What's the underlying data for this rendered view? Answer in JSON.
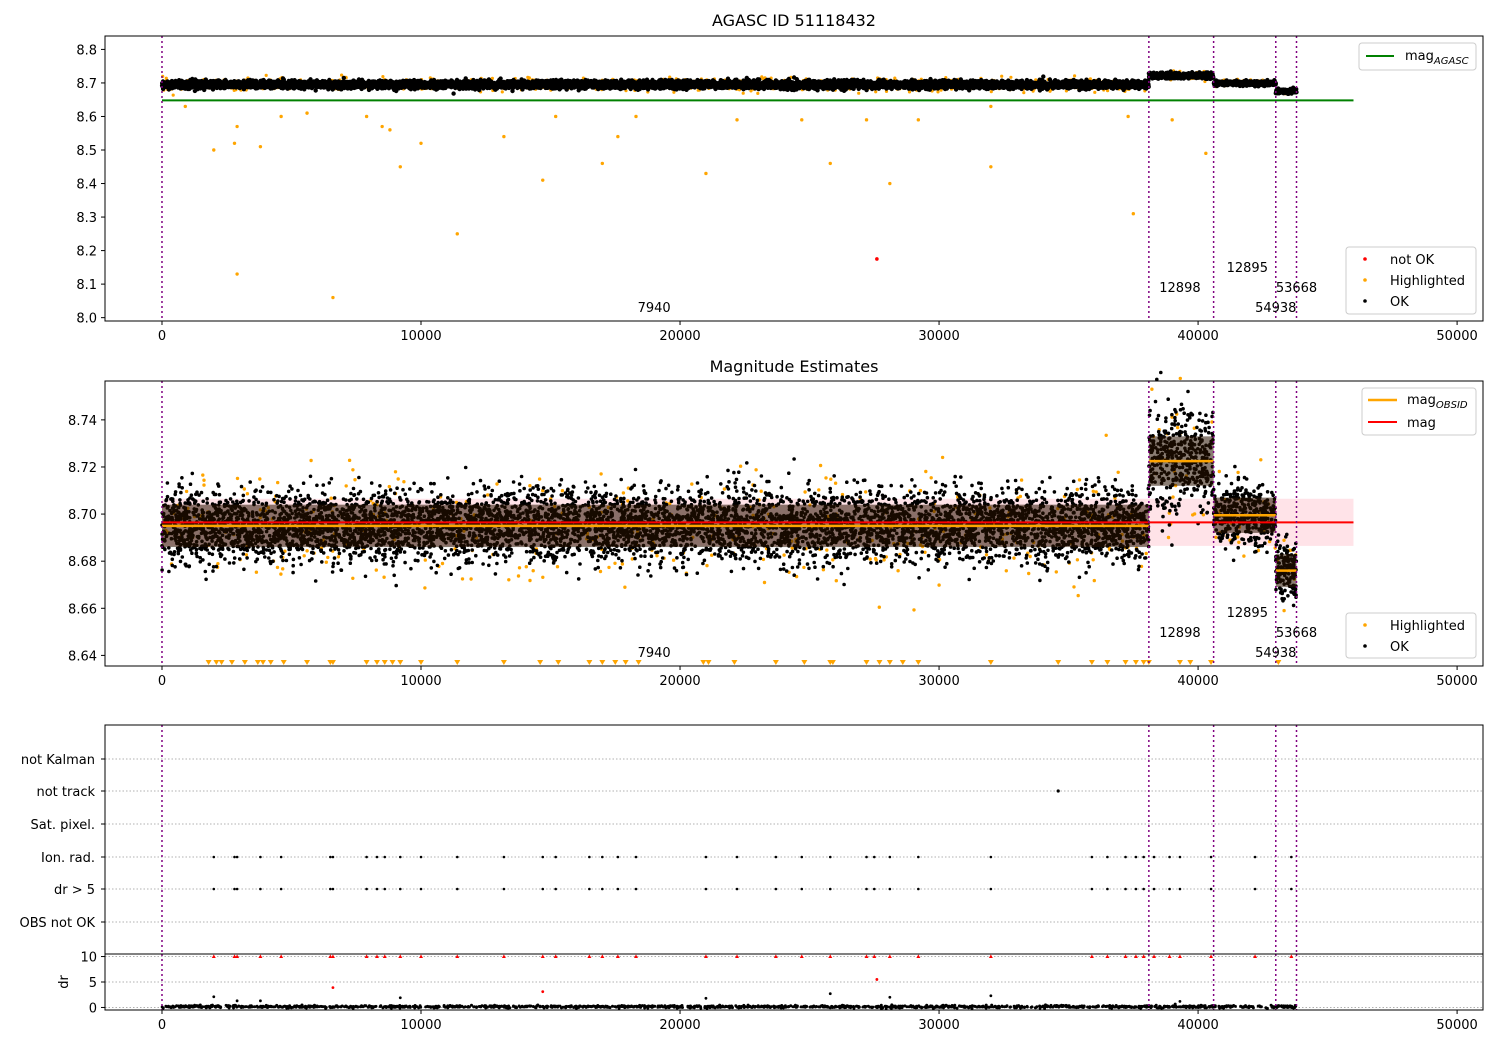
{
  "figure": {
    "title": "AGASC ID 51118432"
  },
  "obsids": [
    {
      "label": "7940",
      "x": 19000
    },
    {
      "label": "12898",
      "x": 39300
    },
    {
      "label": "12895",
      "x": 41900
    },
    {
      "label": "53668",
      "x": 43800
    },
    {
      "label": "54938",
      "x": 43000
    }
  ],
  "vlines": [
    0,
    38100,
    40600,
    43000,
    43800
  ],
  "colors": {
    "ok": "#000000",
    "highlighted": "#ffa500",
    "not_ok": "#ff0000",
    "agasc": "#008000",
    "mag": "#ff0000",
    "obsid_mag": "#ffa500",
    "vline": "#800080",
    "band": "#ffc0cb"
  },
  "chart_data": [
    {
      "type": "scatter",
      "title": "",
      "xlim": [
        -2200,
        51000
      ],
      "ylim": [
        7.99,
        8.84
      ],
      "xticks": [
        0,
        10000,
        20000,
        30000,
        40000,
        50000
      ],
      "xtick_labels": [
        "0",
        "10000",
        "20000",
        "30000",
        "40000",
        "50000"
      ],
      "yticks": [
        8.0,
        8.1,
        8.2,
        8.3,
        8.4,
        8.5,
        8.6,
        8.7,
        8.8
      ],
      "ytick_labels": [
        "8.0",
        "8.1",
        "8.2",
        "8.3",
        "8.4",
        "8.5",
        "8.6",
        "8.7",
        "8.8"
      ],
      "mag_agasc": 8.648,
      "mag_agasc_range": [
        0,
        46000
      ],
      "ok_segments": [
        {
          "x0": 0,
          "x1": 38100,
          "mean": 8.695,
          "spread": 0.02
        },
        {
          "x0": 38100,
          "x1": 40600,
          "mean": 8.722,
          "spread": 0.015
        },
        {
          "x0": 40600,
          "x1": 43000,
          "mean": 8.699,
          "spread": 0.012
        },
        {
          "x0": 43000,
          "x1": 43800,
          "mean": 8.675,
          "spread": 0.01
        }
      ],
      "highlighted_points": [
        [
          2000,
          8.5
        ],
        [
          2800,
          8.52
        ],
        [
          2900,
          8.13
        ],
        [
          2900,
          8.57
        ],
        [
          3800,
          8.51
        ],
        [
          4600,
          8.6
        ],
        [
          6600,
          8.06
        ],
        [
          7900,
          8.6
        ],
        [
          8500,
          8.57
        ],
        [
          8800,
          8.56
        ],
        [
          9200,
          8.45
        ],
        [
          10000,
          8.52
        ],
        [
          11400,
          8.25
        ],
        [
          13200,
          8.54
        ],
        [
          14700,
          8.41
        ],
        [
          15200,
          8.6
        ],
        [
          17000,
          8.46
        ],
        [
          17600,
          8.54
        ],
        [
          18300,
          8.6
        ],
        [
          21000,
          8.43
        ],
        [
          22200,
          8.59
        ],
        [
          24700,
          8.59
        ],
        [
          25800,
          8.46
        ],
        [
          27200,
          8.59
        ],
        [
          28100,
          8.4
        ],
        [
          29200,
          8.59
        ],
        [
          32000,
          8.63
        ],
        [
          32000,
          8.45
        ],
        [
          37500,
          8.31
        ],
        [
          37300,
          8.6
        ],
        [
          39000,
          8.59
        ],
        [
          40300,
          8.49
        ],
        [
          900,
          8.63
        ],
        [
          5600,
          8.61
        ]
      ],
      "not_ok_points": [
        [
          27600,
          8.175
        ]
      ],
      "legend": [
        "mag_AGASC",
        "not OK",
        "Highlighted",
        "OK"
      ]
    },
    {
      "type": "scatter",
      "title": "Magnitude Estimates",
      "xlim": [
        -2200,
        51000
      ],
      "ylim": [
        8.6355,
        8.7565
      ],
      "xticks": [
        0,
        10000,
        20000,
        30000,
        40000,
        50000
      ],
      "xtick_labels": [
        "0",
        "10000",
        "20000",
        "30000",
        "40000",
        "50000"
      ],
      "yticks": [
        8.64,
        8.66,
        8.68,
        8.7,
        8.72,
        8.74
      ],
      "ytick_labels": [
        "8.64",
        "8.66",
        "8.68",
        "8.70",
        "8.72",
        "8.74"
      ],
      "mag": 8.6965,
      "mag_band": [
        8.6865,
        8.7065
      ],
      "mag_range": [
        0,
        46000
      ],
      "obsid_segments": [
        {
          "x0": 0,
          "x1": 38100,
          "mean": 8.695,
          "std": 0.009
        },
        {
          "x0": 38100,
          "x1": 40600,
          "mean": 8.7225,
          "std": 0.0105
        },
        {
          "x0": 40600,
          "x1": 43000,
          "mean": 8.6995,
          "std": 0.0075
        },
        {
          "x0": 43000,
          "x1": 43800,
          "mean": 8.676,
          "std": 0.007
        }
      ],
      "ok_std": [
        0.0075,
        0.0105,
        0.0065,
        0.0065
      ],
      "clipped_x": [
        1800,
        2100,
        2300,
        2700,
        3200,
        3700,
        3900,
        4200,
        4700,
        5600,
        6500,
        6600,
        7900,
        8300,
        8600,
        8900,
        9200,
        10000,
        11400,
        13200,
        14600,
        15300,
        16500,
        17000,
        17500,
        17900,
        18400,
        20900,
        21100,
        22100,
        23700,
        24800,
        25800,
        25900,
        27200,
        27700,
        28100,
        28600,
        29200,
        32000,
        34600,
        35900,
        36500,
        37200,
        37600,
        37900,
        38100,
        39300,
        39700,
        40500,
        43100
      ],
      "legend": [
        "mag_OBSID",
        "mag",
        "Highlighted",
        "OK"
      ]
    },
    {
      "type": "scatter",
      "title": "",
      "xlim": [
        -2200,
        51000
      ],
      "categories": [
        "not Kalman",
        "not track",
        "Sat. pixel.",
        "Ion. rad.",
        "dr > 5",
        "OBS not OK"
      ],
      "flag_x": [
        2000,
        2800,
        2900,
        3800,
        4600,
        6500,
        6600,
        7900,
        8300,
        8600,
        9200,
        10000,
        11400,
        13200,
        14700,
        15200,
        16500,
        17000,
        17600,
        18300,
        21000,
        22200,
        23700,
        24700,
        25800,
        27200,
        27500,
        28100,
        29200,
        32000,
        35900,
        36500,
        37200,
        37600,
        37900,
        38300,
        38900,
        39300,
        40500,
        42200,
        43600
      ],
      "not_track_x": [
        34600
      ],
      "dr": {
        "ylim": [
          -0.5,
          10.5
        ],
        "yticks": [
          0,
          5,
          10
        ],
        "ytick_labels": [
          "0",
          "5",
          "10"
        ],
        "ylabel": "dr",
        "xticks": [
          0,
          10000,
          20000,
          30000,
          40000,
          50000
        ],
        "xtick_labels": [
          "0",
          "10000",
          "20000",
          "30000",
          "40000",
          "50000"
        ],
        "high_points": [
          [
            6600,
            3.9
          ],
          [
            14700,
            3.1
          ],
          [
            27600,
            5.5
          ]
        ],
        "mid_points": [
          [
            2000,
            2.1
          ],
          [
            2900,
            1.3
          ],
          [
            3800,
            1.3
          ],
          [
            9200,
            1.9
          ],
          [
            21000,
            1.8
          ],
          [
            25800,
            2.7
          ],
          [
            28100,
            2.0
          ],
          [
            32000,
            2.3
          ],
          [
            39300,
            1.2
          ]
        ]
      }
    }
  ]
}
